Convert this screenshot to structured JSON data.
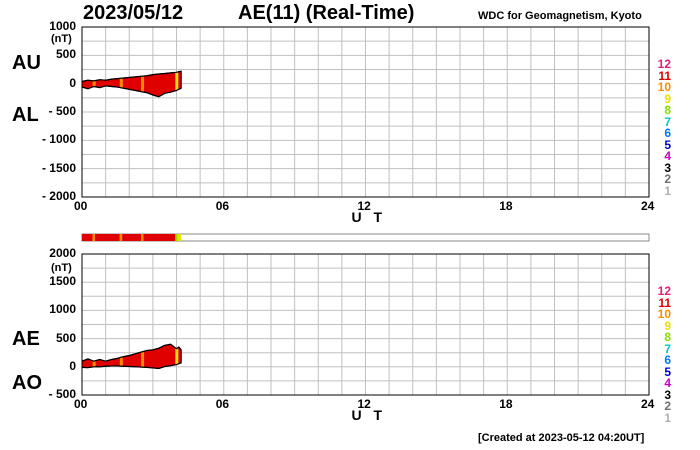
{
  "header": {
    "date": "2023/05/12",
    "title": "AE(11) (Real-Time)",
    "organization": "WDC for Geomagnetism, Kyoto"
  },
  "footer": {
    "created": "[Created at 2023-05-12 04:20UT]"
  },
  "legend": {
    "items": [
      {
        "label": "12",
        "color": "#e0207a"
      },
      {
        "label": "11",
        "color": "#e00000"
      },
      {
        "label": "10",
        "color": "#ff8c00"
      },
      {
        "label": "9",
        "color": "#e8e000"
      },
      {
        "label": "8",
        "color": "#8ce000"
      },
      {
        "label": "7",
        "color": "#00c8c8"
      },
      {
        "label": "6",
        "color": "#0078ff"
      },
      {
        "label": "5",
        "color": "#0000c8"
      },
      {
        "label": "4",
        "color": "#c800c8"
      },
      {
        "label": "3",
        "color": "#000000"
      },
      {
        "label": "2",
        "color": "#707070"
      },
      {
        "label": "1",
        "color": "#b0b0b0"
      }
    ]
  },
  "chart_data": [
    {
      "type": "area",
      "labels": {
        "upper": "AU",
        "lower": "AL"
      },
      "unit": "(nT)",
      "xlabel": "U T",
      "xticks": [
        0,
        6,
        12,
        18,
        24
      ],
      "xtick_labels": [
        "00",
        "06",
        "12",
        "18",
        "24"
      ],
      "xlim": [
        0,
        24
      ],
      "ylim": [
        -2000,
        1000
      ],
      "yticks": [
        1000,
        500,
        0,
        -500,
        -1000,
        -1500,
        -2000
      ],
      "ytick_labels": [
        "1000",
        "500",
        "0",
        "- 500",
        "- 1000",
        "- 1500",
        "- 2000"
      ],
      "grid": true,
      "fill_color": "#e00000",
      "series": [
        {
          "name": "AU",
          "x": [
            0.0,
            0.25,
            0.5,
            0.75,
            1.0,
            1.25,
            1.5,
            1.75,
            2.0,
            2.25,
            2.5,
            2.75,
            3.0,
            3.25,
            3.5,
            3.75,
            4.0,
            4.1,
            4.2
          ],
          "y": [
            40,
            60,
            50,
            70,
            60,
            80,
            90,
            100,
            110,
            120,
            130,
            140,
            160,
            170,
            180,
            190,
            200,
            210,
            220
          ]
        },
        {
          "name": "AL",
          "x": [
            0.0,
            0.25,
            0.5,
            0.75,
            1.0,
            1.25,
            1.5,
            1.75,
            2.0,
            2.25,
            2.5,
            2.75,
            3.0,
            3.25,
            3.5,
            3.75,
            4.0,
            4.1,
            4.2
          ],
          "y": [
            -60,
            -90,
            -50,
            -70,
            -40,
            -50,
            -60,
            -80,
            -100,
            -120,
            -140,
            -160,
            -200,
            -230,
            -170,
            -150,
            -120,
            -100,
            -80
          ]
        }
      ]
    },
    {
      "type": "area",
      "labels": {
        "upper": "AE",
        "lower": "AO"
      },
      "unit": "(nT)",
      "xlabel": "U T",
      "xticks": [
        0,
        6,
        12,
        18,
        24
      ],
      "xtick_labels": [
        "00",
        "06",
        "12",
        "18",
        "24"
      ],
      "xlim": [
        0,
        24
      ],
      "ylim": [
        -500,
        2000
      ],
      "yticks": [
        2000,
        1500,
        1000,
        500,
        0,
        -500
      ],
      "ytick_labels": [
        "2000",
        "1500",
        "1000",
        "500",
        "0",
        "- 500"
      ],
      "grid": true,
      "fill_color": "#e00000",
      "series": [
        {
          "name": "AE",
          "x": [
            0.0,
            0.25,
            0.5,
            0.75,
            1.0,
            1.25,
            1.5,
            1.75,
            2.0,
            2.25,
            2.5,
            2.75,
            3.0,
            3.25,
            3.5,
            3.75,
            4.0,
            4.1,
            4.2
          ],
          "y": [
            100,
            140,
            100,
            130,
            100,
            130,
            150,
            180,
            200,
            230,
            260,
            290,
            300,
            330,
            380,
            400,
            320,
            350,
            300
          ]
        },
        {
          "name": "AO",
          "x": [
            0.0,
            0.25,
            0.5,
            0.75,
            1.0,
            1.25,
            1.5,
            1.75,
            2.0,
            2.25,
            2.5,
            2.75,
            3.0,
            3.25,
            3.5,
            3.75,
            4.0,
            4.1,
            4.2
          ],
          "y": [
            -10,
            -15,
            0,
            0,
            10,
            15,
            15,
            10,
            5,
            0,
            -5,
            -10,
            -20,
            -30,
            5,
            20,
            40,
            55,
            70
          ]
        }
      ]
    }
  ],
  "station_bar": {
    "x_end": 4.2,
    "segments": [
      {
        "start": 0.0,
        "end": 0.45,
        "color": "#e00000"
      },
      {
        "start": 0.45,
        "end": 0.55,
        "color": "#ff8c00"
      },
      {
        "start": 0.55,
        "end": 1.6,
        "color": "#e00000"
      },
      {
        "start": 1.6,
        "end": 1.7,
        "color": "#ff8c00"
      },
      {
        "start": 1.7,
        "end": 2.5,
        "color": "#e00000"
      },
      {
        "start": 2.5,
        "end": 2.6,
        "color": "#ff8c00"
      },
      {
        "start": 2.6,
        "end": 3.95,
        "color": "#e00000"
      },
      {
        "start": 3.95,
        "end": 4.05,
        "color": "#8ce000"
      },
      {
        "start": 4.05,
        "end": 4.2,
        "color": "#e8e000"
      }
    ]
  }
}
